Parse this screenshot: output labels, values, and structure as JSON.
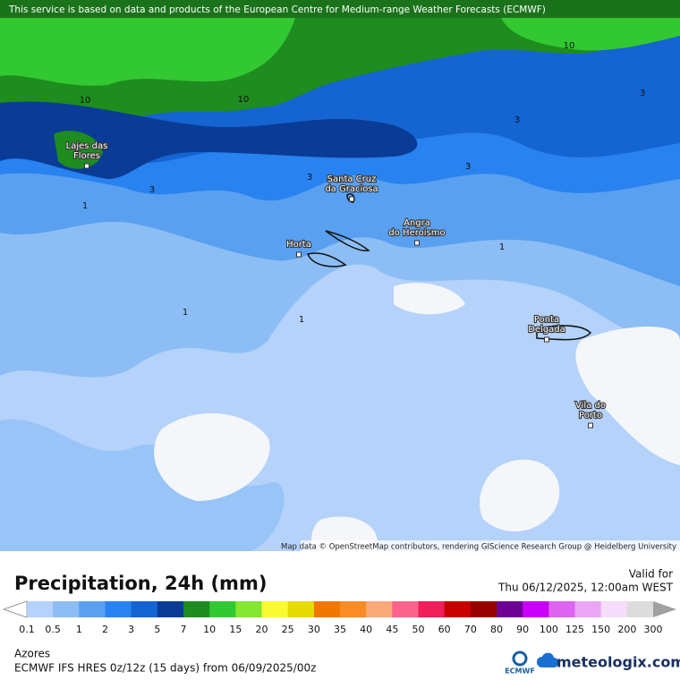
{
  "header": {
    "notice": "This service is based on data and products of the European Centre for Medium-range Weather Forecasts (ECMWF)"
  },
  "map": {
    "places": [
      {
        "lines": [
          "Lajes das",
          "Flores"
        ]
      },
      {
        "lines": [
          "Santa Cruz",
          "da Graciosa"
        ]
      },
      {
        "lines": [
          "Angra",
          "do Heroismo"
        ]
      },
      {
        "lines": [
          "Horta"
        ]
      },
      {
        "lines": [
          "Ponta",
          "Delgada"
        ]
      },
      {
        "lines": [
          "Vila do",
          "Porto"
        ]
      }
    ],
    "contour_labels": [
      "10",
      "10",
      "10",
      "3",
      "3",
      "3",
      "3",
      "3",
      "1",
      "1",
      "1",
      "1"
    ],
    "attribution": "Map data © OpenStreetMap contributors, rendering GIScience Research Group @ Heidelberg University"
  },
  "legend": {
    "title": "Precipitation, 24h (mm)",
    "valid_label": "Valid for",
    "valid_time": "Thu 06/12/2025, 12:00am WEST",
    "steps": [
      0.1,
      0.5,
      1,
      2,
      3,
      5,
      7,
      10,
      15,
      20,
      25,
      30,
      35,
      40,
      45,
      50,
      60,
      70,
      80,
      90,
      100,
      125,
      150,
      200,
      300
    ],
    "colors": [
      "#b4d2fa",
      "#8cbef5",
      "#5aa0f0",
      "#2882f0",
      "#1464d2",
      "#0a3c96",
      "#1e8c1e",
      "#32c832",
      "#82e632",
      "#fafa32",
      "#e6dc00",
      "#f07800",
      "#fa8c28",
      "#faaa78",
      "#fa648c",
      "#f01e5a",
      "#c80000",
      "#960000",
      "#6e0096",
      "#c800fa",
      "#dc64f0",
      "#eba5f5",
      "#f5dcfa",
      "#dcdcdc"
    ],
    "under_color": "#ffffff",
    "over_color": "#a0a0a0"
  },
  "footer": {
    "region": "Azores",
    "model": "ECMWF IFS HRES 0z/12z (15 days) from  06/09/2025/00z",
    "ecmwf_logo": "ECMWF",
    "brand": "meteologix.com"
  }
}
